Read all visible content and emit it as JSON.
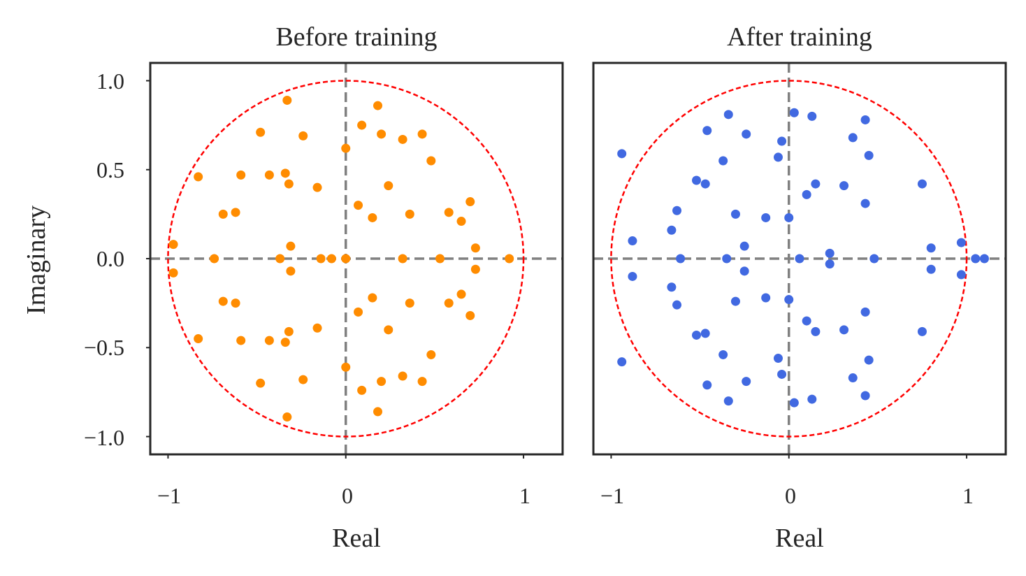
{
  "chart_data": [
    {
      "type": "scatter",
      "title": "Before training",
      "xlabel": "Real",
      "ylabel": "Imaginary",
      "xlim": [
        -1.1,
        1.22
      ],
      "ylim": [
        -1.1,
        1.1
      ],
      "xticks": [
        -1,
        0,
        1
      ],
      "xtick_labels": [
        "−1",
        "0",
        "1"
      ],
      "yticks": [
        1.0,
        0.5,
        0.0,
        -0.5,
        -1.0
      ],
      "ytick_labels": [
        "1.0",
        "0.5",
        "0.0",
        "−0.5",
        "−1.0"
      ],
      "reference_lines": {
        "x": 0,
        "y": 0
      },
      "unit_circle": {
        "radius": 1,
        "color": "#ff0000"
      },
      "point_color": "#ff8c00",
      "points": [
        [
          -0.33,
          0.89
        ],
        [
          0.18,
          0.86
        ],
        [
          -0.48,
          0.71
        ],
        [
          0.09,
          0.75
        ],
        [
          -0.24,
          0.69
        ],
        [
          0.2,
          0.7
        ],
        [
          0.32,
          0.67
        ],
        [
          0.43,
          0.7
        ],
        [
          0.0,
          0.62
        ],
        [
          0.48,
          0.55
        ],
        [
          -0.83,
          0.46
        ],
        [
          -0.59,
          0.47
        ],
        [
          -0.43,
          0.47
        ],
        [
          -0.34,
          0.48
        ],
        [
          -0.32,
          0.42
        ],
        [
          -0.16,
          0.4
        ],
        [
          0.24,
          0.41
        ],
        [
          0.07,
          0.3
        ],
        [
          0.15,
          0.23
        ],
        [
          0.36,
          0.25
        ],
        [
          0.58,
          0.26
        ],
        [
          0.65,
          0.21
        ],
        [
          0.7,
          0.32
        ],
        [
          -0.69,
          0.25
        ],
        [
          -0.62,
          0.26
        ],
        [
          -0.97,
          0.08
        ],
        [
          -0.31,
          0.07
        ],
        [
          0.73,
          0.06
        ],
        [
          -0.97,
          -0.08
        ],
        [
          -0.31,
          -0.07
        ],
        [
          0.73,
          -0.06
        ],
        [
          -0.74,
          0.0
        ],
        [
          -0.37,
          0.0
        ],
        [
          -0.14,
          0.0
        ],
        [
          -0.08,
          0.0
        ],
        [
          0.0,
          0.0
        ],
        [
          0.32,
          0.0
        ],
        [
          0.53,
          0.0
        ],
        [
          0.92,
          0.0
        ],
        [
          -0.33,
          -0.89
        ],
        [
          0.18,
          -0.86
        ],
        [
          -0.48,
          -0.7
        ],
        [
          0.09,
          -0.74
        ],
        [
          -0.24,
          -0.68
        ],
        [
          0.2,
          -0.69
        ],
        [
          0.32,
          -0.66
        ],
        [
          0.43,
          -0.69
        ],
        [
          0.0,
          -0.61
        ],
        [
          0.48,
          -0.54
        ],
        [
          -0.83,
          -0.45
        ],
        [
          -0.59,
          -0.46
        ],
        [
          -0.43,
          -0.46
        ],
        [
          -0.34,
          -0.47
        ],
        [
          -0.32,
          -0.41
        ],
        [
          -0.16,
          -0.39
        ],
        [
          0.24,
          -0.4
        ],
        [
          0.07,
          -0.3
        ],
        [
          0.15,
          -0.22
        ],
        [
          0.36,
          -0.25
        ],
        [
          0.58,
          -0.25
        ],
        [
          0.65,
          -0.2
        ],
        [
          0.7,
          -0.32
        ],
        [
          -0.69,
          -0.24
        ],
        [
          -0.62,
          -0.25
        ]
      ]
    },
    {
      "type": "scatter",
      "title": "After training",
      "xlabel": "Real",
      "ylabel": "",
      "xlim": [
        -1.1,
        1.22
      ],
      "ylim": [
        -1.1,
        1.1
      ],
      "xticks": [
        -1,
        0,
        1
      ],
      "xtick_labels": [
        "−1",
        "0",
        "1"
      ],
      "reference_lines": {
        "x": 0,
        "y": 0
      },
      "unit_circle": {
        "radius": 1,
        "color": "#ff0000"
      },
      "point_color": "#4169e1",
      "points": [
        [
          -0.94,
          0.59
        ],
        [
          -0.34,
          0.81
        ],
        [
          0.03,
          0.82
        ],
        [
          0.13,
          0.8
        ],
        [
          -0.46,
          0.72
        ],
        [
          -0.24,
          0.7
        ],
        [
          0.43,
          0.78
        ],
        [
          0.36,
          0.68
        ],
        [
          0.45,
          0.58
        ],
        [
          -0.04,
          0.66
        ],
        [
          -0.06,
          0.57
        ],
        [
          -0.37,
          0.55
        ],
        [
          -0.52,
          0.44
        ],
        [
          -0.47,
          0.42
        ],
        [
          0.15,
          0.42
        ],
        [
          0.1,
          0.36
        ],
        [
          0.31,
          0.41
        ],
        [
          0.75,
          0.42
        ],
        [
          0.43,
          0.31
        ],
        [
          -0.63,
          0.27
        ],
        [
          -0.3,
          0.25
        ],
        [
          -0.13,
          0.23
        ],
        [
          -0.66,
          0.16
        ],
        [
          -0.88,
          0.1
        ],
        [
          -0.25,
          0.07
        ],
        [
          0.0,
          0.23
        ],
        [
          0.23,
          0.03
        ],
        [
          0.97,
          0.09
        ],
        [
          0.8,
          0.06
        ],
        [
          -0.94,
          -0.58
        ],
        [
          -0.34,
          -0.8
        ],
        [
          0.03,
          -0.81
        ],
        [
          0.13,
          -0.79
        ],
        [
          -0.46,
          -0.71
        ],
        [
          -0.24,
          -0.69
        ],
        [
          0.43,
          -0.77
        ],
        [
          0.36,
          -0.67
        ],
        [
          0.45,
          -0.57
        ],
        [
          -0.04,
          -0.65
        ],
        [
          -0.06,
          -0.56
        ],
        [
          -0.37,
          -0.54
        ],
        [
          -0.52,
          -0.43
        ],
        [
          -0.47,
          -0.42
        ],
        [
          0.15,
          -0.41
        ],
        [
          0.1,
          -0.35
        ],
        [
          0.31,
          -0.4
        ],
        [
          0.75,
          -0.41
        ],
        [
          0.43,
          -0.3
        ],
        [
          -0.63,
          -0.26
        ],
        [
          -0.3,
          -0.24
        ],
        [
          -0.13,
          -0.22
        ],
        [
          -0.66,
          -0.16
        ],
        [
          -0.88,
          -0.1
        ],
        [
          -0.25,
          -0.07
        ],
        [
          0.0,
          -0.23
        ],
        [
          0.23,
          -0.03
        ],
        [
          0.97,
          -0.09
        ],
        [
          0.8,
          -0.06
        ],
        [
          -0.61,
          0.0
        ],
        [
          -0.35,
          0.0
        ],
        [
          0.06,
          0.0
        ],
        [
          0.48,
          0.0
        ],
        [
          1.05,
          0.0
        ],
        [
          1.1,
          0.0
        ]
      ]
    }
  ]
}
